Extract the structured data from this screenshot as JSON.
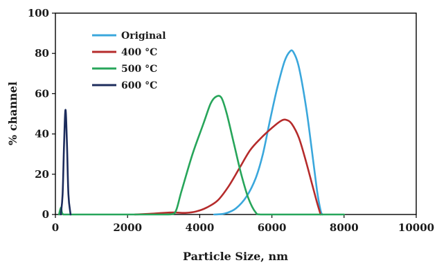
{
  "chart_data": {
    "type": "line",
    "title": "",
    "xlabel": "Particle Size, nm",
    "ylabel": "% channel",
    "xlim": [
      0,
      10000
    ],
    "ylim": [
      0,
      100
    ],
    "x_ticks": [
      0,
      2000,
      4000,
      6000,
      8000,
      10000
    ],
    "y_ticks": [
      0,
      20,
      40,
      60,
      80,
      100
    ],
    "grid": false,
    "legend_position": "top-left",
    "series": [
      {
        "name": "Original",
        "color": "#3aa7dc",
        "points": [
          [
            4400,
            0
          ],
          [
            4700,
            0.5
          ],
          [
            5000,
            3
          ],
          [
            5300,
            9
          ],
          [
            5550,
            18
          ],
          [
            5750,
            30
          ],
          [
            5950,
            47
          ],
          [
            6150,
            63
          ],
          [
            6350,
            76
          ],
          [
            6500,
            81
          ],
          [
            6600,
            80.5
          ],
          [
            6750,
            73
          ],
          [
            6950,
            53
          ],
          [
            7100,
            33
          ],
          [
            7250,
            12
          ],
          [
            7350,
            2
          ],
          [
            7400,
            0
          ]
        ]
      },
      {
        "name": "400 °C",
        "color": "#b52b2b",
        "points": [
          [
            2200,
            0
          ],
          [
            2600,
            0.3
          ],
          [
            3000,
            0.8
          ],
          [
            3300,
            1
          ],
          [
            3600,
            0.8
          ],
          [
            3900,
            1.5
          ],
          [
            4200,
            3.5
          ],
          [
            4500,
            7
          ],
          [
            4800,
            14
          ],
          [
            5100,
            23
          ],
          [
            5400,
            32
          ],
          [
            5700,
            38
          ],
          [
            6000,
            43
          ],
          [
            6250,
            46.5
          ],
          [
            6400,
            47
          ],
          [
            6550,
            45
          ],
          [
            6750,
            38
          ],
          [
            6950,
            26
          ],
          [
            7100,
            16
          ],
          [
            7250,
            6
          ],
          [
            7350,
            0
          ]
        ]
      },
      {
        "name": "500 °C",
        "color": "#27a55a",
        "points": [
          [
            100,
            0
          ],
          [
            160,
            3.5
          ],
          [
            220,
            0
          ],
          [
            600,
            0
          ],
          [
            2000,
            0
          ],
          [
            3000,
            0
          ],
          [
            3300,
            0.5
          ],
          [
            3500,
            12
          ],
          [
            3800,
            30
          ],
          [
            4100,
            45
          ],
          [
            4300,
            55
          ],
          [
            4450,
            58.5
          ],
          [
            4600,
            58
          ],
          [
            4750,
            50
          ],
          [
            4950,
            35
          ],
          [
            5150,
            20
          ],
          [
            5350,
            8
          ],
          [
            5550,
            1
          ],
          [
            5700,
            0
          ],
          [
            6500,
            0
          ],
          [
            7000,
            0
          ],
          [
            7500,
            0
          ],
          [
            8000,
            0
          ]
        ]
      },
      {
        "name": "600 °C",
        "color": "#1c2c5c",
        "points": [
          [
            150,
            0
          ],
          [
            200,
            10
          ],
          [
            240,
            35
          ],
          [
            280,
            52
          ],
          [
            320,
            35
          ],
          [
            360,
            10
          ],
          [
            420,
            0
          ]
        ]
      }
    ]
  }
}
